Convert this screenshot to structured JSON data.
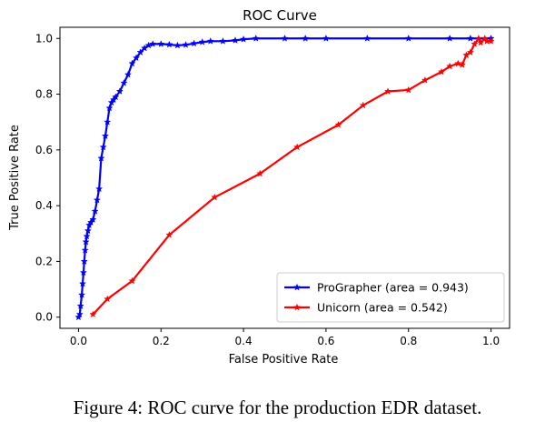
{
  "chart_data": {
    "type": "line",
    "title": "ROC Curve",
    "xlabel": "False Positive Rate",
    "ylabel": "True Positive Rate",
    "xlim": [
      -0.045,
      1.045
    ],
    "ylim": [
      -0.04,
      1.04
    ],
    "xticks": [
      0.0,
      0.2,
      0.4,
      0.6,
      0.8,
      1.0
    ],
    "yticks": [
      0.0,
      0.2,
      0.4,
      0.6,
      0.8,
      1.0
    ],
    "xtick_labels": [
      "0.0",
      "0.2",
      "0.4",
      "0.6",
      "0.8",
      "1.0"
    ],
    "ytick_labels": [
      "0.0",
      "0.2",
      "0.4",
      "0.6",
      "0.8",
      "1.0"
    ],
    "grid": false,
    "legend_position": "lower-right",
    "series": [
      {
        "name": "ProGrapher (area = 0.943)",
        "color": "#0000ff",
        "marker": "star",
        "points": [
          [
            0.0,
            0.0
          ],
          [
            0.003,
            0.01
          ],
          [
            0.005,
            0.04
          ],
          [
            0.008,
            0.08
          ],
          [
            0.01,
            0.12
          ],
          [
            0.012,
            0.16
          ],
          [
            0.014,
            0.2
          ],
          [
            0.016,
            0.24
          ],
          [
            0.018,
            0.27
          ],
          [
            0.02,
            0.29
          ],
          [
            0.023,
            0.31
          ],
          [
            0.026,
            0.33
          ],
          [
            0.03,
            0.34
          ],
          [
            0.035,
            0.35
          ],
          [
            0.04,
            0.38
          ],
          [
            0.045,
            0.42
          ],
          [
            0.05,
            0.46
          ],
          [
            0.055,
            0.57
          ],
          [
            0.06,
            0.61
          ],
          [
            0.065,
            0.65
          ],
          [
            0.07,
            0.7
          ],
          [
            0.075,
            0.75
          ],
          [
            0.08,
            0.77
          ],
          [
            0.085,
            0.78
          ],
          [
            0.09,
            0.79
          ],
          [
            0.1,
            0.81
          ],
          [
            0.11,
            0.84
          ],
          [
            0.12,
            0.87
          ],
          [
            0.13,
            0.91
          ],
          [
            0.14,
            0.93
          ],
          [
            0.15,
            0.95
          ],
          [
            0.16,
            0.965
          ],
          [
            0.17,
            0.975
          ],
          [
            0.18,
            0.98
          ],
          [
            0.2,
            0.98
          ],
          [
            0.22,
            0.978
          ],
          [
            0.24,
            0.975
          ],
          [
            0.26,
            0.977
          ],
          [
            0.28,
            0.982
          ],
          [
            0.3,
            0.987
          ],
          [
            0.32,
            0.99
          ],
          [
            0.35,
            0.99
          ],
          [
            0.38,
            0.993
          ],
          [
            0.4,
            0.997
          ],
          [
            0.43,
            1.0
          ],
          [
            0.5,
            1.0
          ],
          [
            0.55,
            1.0
          ],
          [
            0.6,
            1.0
          ],
          [
            0.7,
            1.0
          ],
          [
            0.8,
            1.0
          ],
          [
            0.9,
            1.0
          ],
          [
            0.95,
            1.0
          ],
          [
            1.0,
            1.0
          ]
        ]
      },
      {
        "name": "Unicorn (area = 0.542)",
        "color": "#ff0000",
        "marker": "star",
        "points": [
          [
            0.035,
            0.01
          ],
          [
            0.07,
            0.065
          ],
          [
            0.13,
            0.13
          ],
          [
            0.22,
            0.295
          ],
          [
            0.33,
            0.43
          ],
          [
            0.44,
            0.515
          ],
          [
            0.53,
            0.61
          ],
          [
            0.63,
            0.69
          ],
          [
            0.69,
            0.76
          ],
          [
            0.75,
            0.81
          ],
          [
            0.8,
            0.815
          ],
          [
            0.84,
            0.85
          ],
          [
            0.88,
            0.88
          ],
          [
            0.9,
            0.9
          ],
          [
            0.92,
            0.91
          ],
          [
            0.93,
            0.905
          ],
          [
            0.94,
            0.94
          ],
          [
            0.95,
            0.95
          ],
          [
            0.96,
            0.98
          ],
          [
            0.97,
            1.0
          ],
          [
            0.975,
            0.985
          ],
          [
            0.985,
            1.0
          ],
          [
            0.99,
            0.99
          ],
          [
            1.0,
            0.99
          ]
        ]
      }
    ]
  },
  "caption": "Figure 4: ROC curve for the production EDR dataset."
}
